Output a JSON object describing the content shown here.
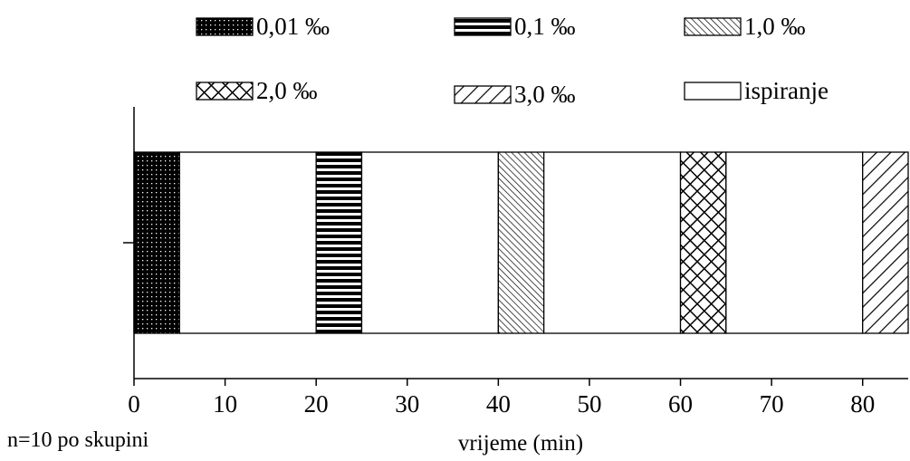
{
  "chart_data": {
    "type": "bar",
    "orientation": "horizontal-timeline",
    "title": "",
    "xlabel": "vrijeme (min)",
    "ylabel": "",
    "note": "n=10 po skupini",
    "xlim": [
      0,
      85
    ],
    "xticks": [
      0,
      10,
      20,
      30,
      40,
      50,
      60,
      70,
      80
    ],
    "grid": false,
    "legend_position": "top",
    "colors": {
      "stroke": "#000000",
      "background": "#ffffff"
    },
    "legend": [
      {
        "label": "0,01 ‰",
        "pattern": "dots"
      },
      {
        "label": "0,1 ‰",
        "pattern": "horizontal"
      },
      {
        "label": "1,0 ‰",
        "pattern": "diagonal-fine"
      },
      {
        "label": "2,0 ‰",
        "pattern": "crosshatch"
      },
      {
        "label": "3,0 ‰",
        "pattern": "diagonal-wide"
      },
      {
        "label": "ispiranje",
        "pattern": "none"
      }
    ],
    "segments": [
      {
        "series": "0,01 ‰",
        "start": 0,
        "end": 5
      },
      {
        "series": "ispiranje",
        "start": 5,
        "end": 20
      },
      {
        "series": "0,1 ‰",
        "start": 20,
        "end": 25
      },
      {
        "series": "ispiranje",
        "start": 25,
        "end": 40
      },
      {
        "series": "1,0 ‰",
        "start": 40,
        "end": 45
      },
      {
        "series": "ispiranje",
        "start": 45,
        "end": 60
      },
      {
        "series": "2,0 ‰",
        "start": 60,
        "end": 65
      },
      {
        "series": "ispiranje",
        "start": 65,
        "end": 80
      },
      {
        "series": "3,0 ‰",
        "start": 80,
        "end": 85
      }
    ]
  }
}
